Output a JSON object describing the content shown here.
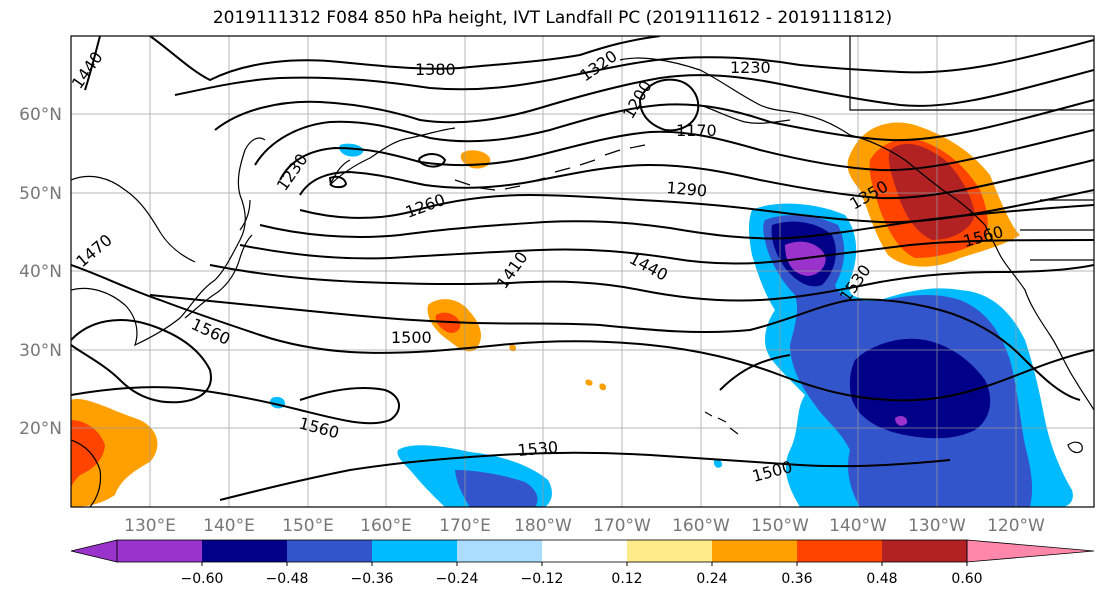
{
  "title": "2019111312 F084 850 hPa height, IVT Landfall PC (2019111612 - 2019111812)",
  "map": {
    "lat_labels": [
      "60°N",
      "50°N",
      "40°N",
      "30°N",
      "20°N"
    ],
    "lon_labels": [
      "130°E",
      "140°E",
      "150°E",
      "160°E",
      "170°E",
      "180°W",
      "170°W",
      "160°W",
      "150°W",
      "140°W",
      "130°W",
      "120°W"
    ],
    "contour_labels": [
      {
        "text": "1440"
      },
      {
        "text": "1380"
      },
      {
        "text": "1320"
      },
      {
        "text": "1230"
      },
      {
        "text": "1200"
      },
      {
        "text": "1170"
      },
      {
        "text": "1230"
      },
      {
        "text": "1260"
      },
      {
        "text": "1290"
      },
      {
        "text": "1350"
      },
      {
        "text": "1470"
      },
      {
        "text": "1410"
      },
      {
        "text": "1440"
      },
      {
        "text": "1560"
      },
      {
        "text": "1530"
      },
      {
        "text": "1560"
      },
      {
        "text": "1500"
      },
      {
        "text": "1560"
      },
      {
        "text": "1530"
      },
      {
        "text": "1500"
      }
    ]
  },
  "colorbar": {
    "colors": [
      "#9933cc",
      "#000088",
      "#3355cc",
      "#00bbff",
      "#aaddff",
      "#ffffff",
      "#ffeb88",
      "#ffa000",
      "#ff4400",
      "#b22222",
      "#ff88aa"
    ],
    "tick_labels": [
      "−0.60",
      "−0.48",
      "−0.36",
      "−0.24",
      "−0.12",
      "0.12",
      "0.24",
      "0.36",
      "0.48",
      "0.60"
    ]
  }
}
